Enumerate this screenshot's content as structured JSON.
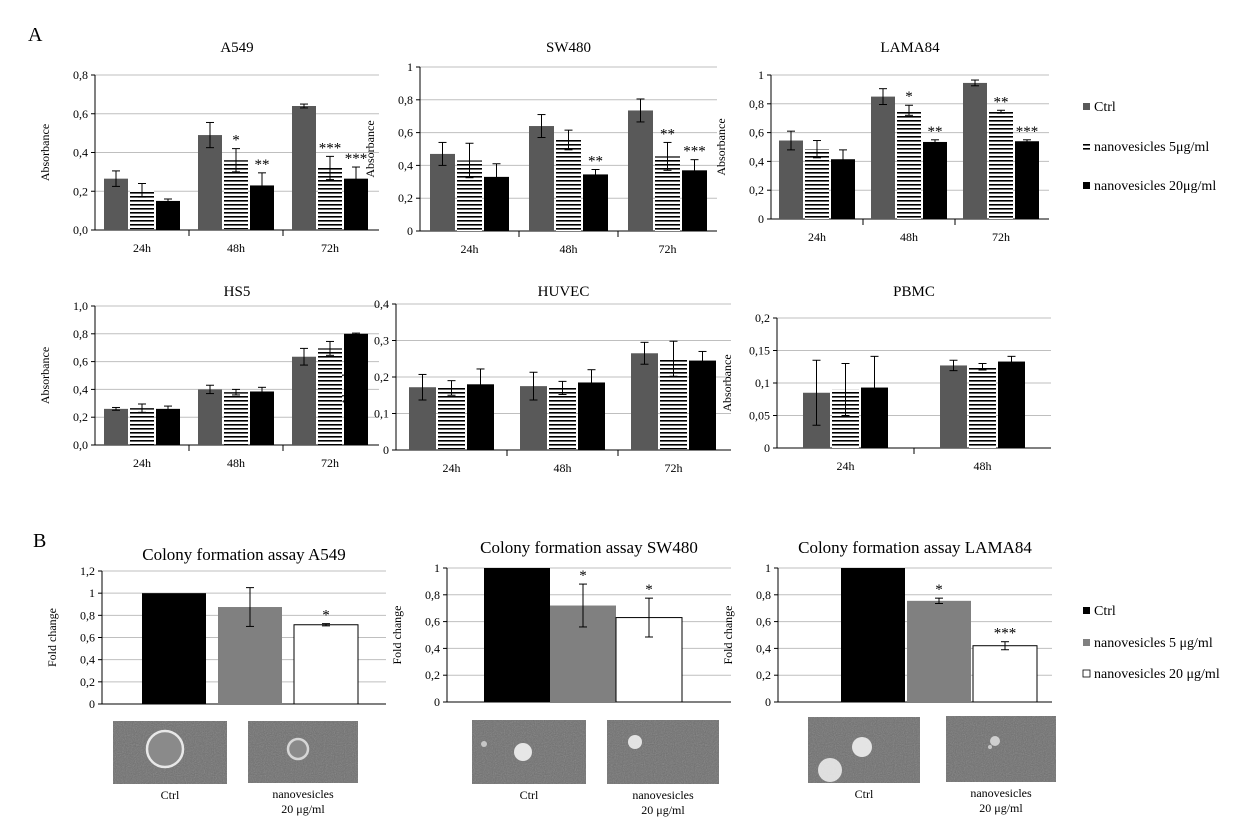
{
  "panel_labels": {
    "A": "A",
    "B": "B"
  },
  "colors": {
    "ctrl_A": "#595959",
    "nano5_A": "hatch-horizontal",
    "nano20_A": "#000000",
    "ctrl_B": "#000000",
    "nano5_B": "#808080",
    "nano20_B": "#ffffff"
  },
  "legend_A": {
    "position": "right",
    "items": [
      "Ctrl",
      "nanovesicles 5μg/ml",
      "nanovesicles 20μg/ml"
    ]
  },
  "legend_B": {
    "position": "right",
    "items": [
      "Ctrl",
      "nanovesicles 5 μg/ml",
      "nanovesicles 20 μg/ml"
    ]
  },
  "chart_data": [
    {
      "type": "bar",
      "title": "A549",
      "ylabel": "Absorbance",
      "xlabel": "",
      "categories": [
        "24h",
        "48h",
        "72h"
      ],
      "ylim": [
        0,
        0.8
      ],
      "yticks": [
        "0,0",
        "0,2",
        "0,4",
        "0,6",
        "0,8"
      ],
      "series": [
        {
          "values": [
            0.265,
            0.49,
            0.64
          ],
          "errors": [
            0.04,
            0.065,
            0.01
          ],
          "sig": [
            "",
            "",
            ""
          ]
        },
        {
          "values": [
            0.205,
            0.36,
            0.32
          ],
          "errors": [
            0.035,
            0.06,
            0.06
          ],
          "sig": [
            "",
            "*",
            "***"
          ]
        },
        {
          "values": [
            0.15,
            0.23,
            0.265
          ],
          "errors": [
            0.01,
            0.065,
            0.06
          ],
          "sig": [
            "",
            "**",
            "***"
          ]
        }
      ]
    },
    {
      "type": "bar",
      "title": "SW480",
      "ylabel": "Absorbance",
      "xlabel": "",
      "categories": [
        "24h",
        "48h",
        "72h"
      ],
      "ylim": [
        0,
        1
      ],
      "yticks": [
        "0",
        "0,2",
        "0,4",
        "0,6",
        "0,8",
        "1"
      ],
      "series": [
        {
          "values": [
            0.47,
            0.64,
            0.735
          ],
          "errors": [
            0.07,
            0.07,
            0.07
          ],
          "sig": [
            "",
            "",
            ""
          ]
        },
        {
          "values": [
            0.43,
            0.555,
            0.455
          ],
          "errors": [
            0.105,
            0.06,
            0.085
          ],
          "sig": [
            "",
            "",
            "**"
          ]
        },
        {
          "values": [
            0.33,
            0.345,
            0.37
          ],
          "errors": [
            0.08,
            0.03,
            0.065
          ],
          "sig": [
            "",
            "**",
            "***"
          ]
        }
      ]
    },
    {
      "type": "bar",
      "title": "LAMA84",
      "ylabel": "Absorbance",
      "xlabel": "",
      "categories": [
        "24h",
        "48h",
        "72h"
      ],
      "ylim": [
        0,
        1
      ],
      "yticks": [
        "0",
        "0,2",
        "0,4",
        "0,6",
        "0,8",
        "1"
      ],
      "series": [
        {
          "values": [
            0.545,
            0.85,
            0.945
          ],
          "errors": [
            0.065,
            0.055,
            0.02
          ],
          "sig": [
            "",
            "",
            ""
          ]
        },
        {
          "values": [
            0.485,
            0.755,
            0.745
          ],
          "errors": [
            0.06,
            0.035,
            0.01
          ],
          "sig": [
            "",
            "*",
            "**"
          ]
        },
        {
          "values": [
            0.415,
            0.535,
            0.54
          ],
          "errors": [
            0.065,
            0.015,
            0.01
          ],
          "sig": [
            "",
            "**",
            "***"
          ]
        }
      ]
    },
    {
      "type": "bar",
      "title": "HS5",
      "ylabel": "Absorbance",
      "xlabel": "",
      "categories": [
        "24h",
        "48h",
        "72h"
      ],
      "ylim": [
        0,
        1
      ],
      "yticks": [
        "0,0",
        "0,2",
        "0,4",
        "0,6",
        "0,8",
        "1,0"
      ],
      "series": [
        {
          "values": [
            0.26,
            0.4,
            0.635
          ],
          "errors": [
            0.01,
            0.03,
            0.06
          ],
          "sig": [
            "",
            "",
            ""
          ]
        },
        {
          "values": [
            0.265,
            0.38,
            0.695
          ],
          "errors": [
            0.03,
            0.02,
            0.05
          ],
          "sig": [
            "",
            "",
            ""
          ]
        },
        {
          "values": [
            0.26,
            0.385,
            0.8
          ],
          "errors": [
            0.02,
            0.03,
            0.005
          ],
          "sig": [
            "",
            "",
            ""
          ]
        }
      ]
    },
    {
      "type": "bar",
      "title": "HUVEC",
      "ylabel": "Absorbance",
      "xlabel": "",
      "categories": [
        "24h",
        "48h",
        "72h"
      ],
      "ylim": [
        0,
        0.4
      ],
      "yticks": [
        "0",
        "0,1",
        "0,2",
        "0,3",
        "0,4"
      ],
      "series": [
        {
          "values": [
            0.172,
            0.175,
            0.265
          ],
          "errors": [
            0.035,
            0.038,
            0.03
          ],
          "sig": [
            "",
            "",
            ""
          ]
        },
        {
          "values": [
            0.17,
            0.17,
            0.25
          ],
          "errors": [
            0.02,
            0.018,
            0.048
          ],
          "sig": [
            "",
            "",
            ""
          ]
        },
        {
          "values": [
            0.18,
            0.185,
            0.245
          ],
          "errors": [
            0.042,
            0.035,
            0.025
          ],
          "sig": [
            "",
            "",
            ""
          ]
        }
      ]
    },
    {
      "type": "bar",
      "title": "PBMC",
      "ylabel": "Absorbance",
      "xlabel": "",
      "categories": [
        "24h",
        "48h"
      ],
      "ylim": [
        0,
        0.2
      ],
      "yticks": [
        "0",
        "0,05",
        "0,1",
        "0,15",
        "0,2"
      ],
      "series": [
        {
          "values": [
            0.085,
            0.127
          ],
          "errors": [
            0.05,
            0.008
          ],
          "sig": [
            "",
            ""
          ]
        },
        {
          "values": [
            0.09,
            0.125
          ],
          "errors": [
            0.04,
            0.005
          ],
          "sig": [
            "",
            ""
          ]
        },
        {
          "values": [
            0.093,
            0.133
          ],
          "errors": [
            0.048,
            0.008
          ],
          "sig": [
            "",
            ""
          ]
        }
      ]
    },
    {
      "type": "bar",
      "title": "Colony formation assay  A549",
      "ylabel": "Fold change",
      "xlabel": "",
      "categories": [
        ""
      ],
      "ylim": [
        0,
        1.2
      ],
      "yticks": [
        "0",
        "0,2",
        "0,4",
        "0,6",
        "0,8",
        "1",
        "1,2"
      ],
      "series": [
        {
          "values": [
            1.0
          ],
          "errors": [
            0
          ],
          "sig": [
            ""
          ]
        },
        {
          "values": [
            0.875
          ],
          "errors": [
            0.175
          ],
          "sig": [
            ""
          ]
        },
        {
          "values": [
            0.715
          ],
          "errors": [
            0.01
          ],
          "sig": [
            "*"
          ]
        }
      ]
    },
    {
      "type": "bar",
      "title": "Colony formation assay  SW480",
      "ylabel": "Fold change",
      "xlabel": "",
      "categories": [
        ""
      ],
      "ylim": [
        0,
        1
      ],
      "yticks": [
        "0",
        "0,2",
        "0,4",
        "0,6",
        "0,8",
        "1"
      ],
      "series": [
        {
          "values": [
            1.0
          ],
          "errors": [
            0
          ],
          "sig": [
            ""
          ]
        },
        {
          "values": [
            0.72
          ],
          "errors": [
            0.16
          ],
          "sig": [
            "*"
          ]
        },
        {
          "values": [
            0.63
          ],
          "errors": [
            0.145
          ],
          "sig": [
            "*"
          ]
        }
      ]
    },
    {
      "type": "bar",
      "title": "Colony formation assay  LAMA84",
      "ylabel": "Fold change",
      "xlabel": "",
      "categories": [
        ""
      ],
      "ylim": [
        0,
        1
      ],
      "yticks": [
        "0",
        "0,2",
        "0,4",
        "0,6",
        "0,8",
        "1"
      ],
      "series": [
        {
          "values": [
            1.0
          ],
          "errors": [
            0
          ],
          "sig": [
            ""
          ]
        },
        {
          "values": [
            0.755
          ],
          "errors": [
            0.02
          ],
          "sig": [
            "*"
          ]
        },
        {
          "values": [
            0.42
          ],
          "errors": [
            0.03
          ],
          "sig": [
            "***"
          ]
        }
      ]
    }
  ],
  "micrographs": [
    {
      "labels": [
        "Ctrl",
        "nanovesicles",
        "20 μg/ml"
      ]
    },
    {
      "labels": [
        "Ctrl",
        "nanovesicles",
        "20 μg/ml"
      ]
    },
    {
      "labels": [
        "Ctrl",
        "nanovesicles",
        "20 μg/ml"
      ]
    }
  ]
}
